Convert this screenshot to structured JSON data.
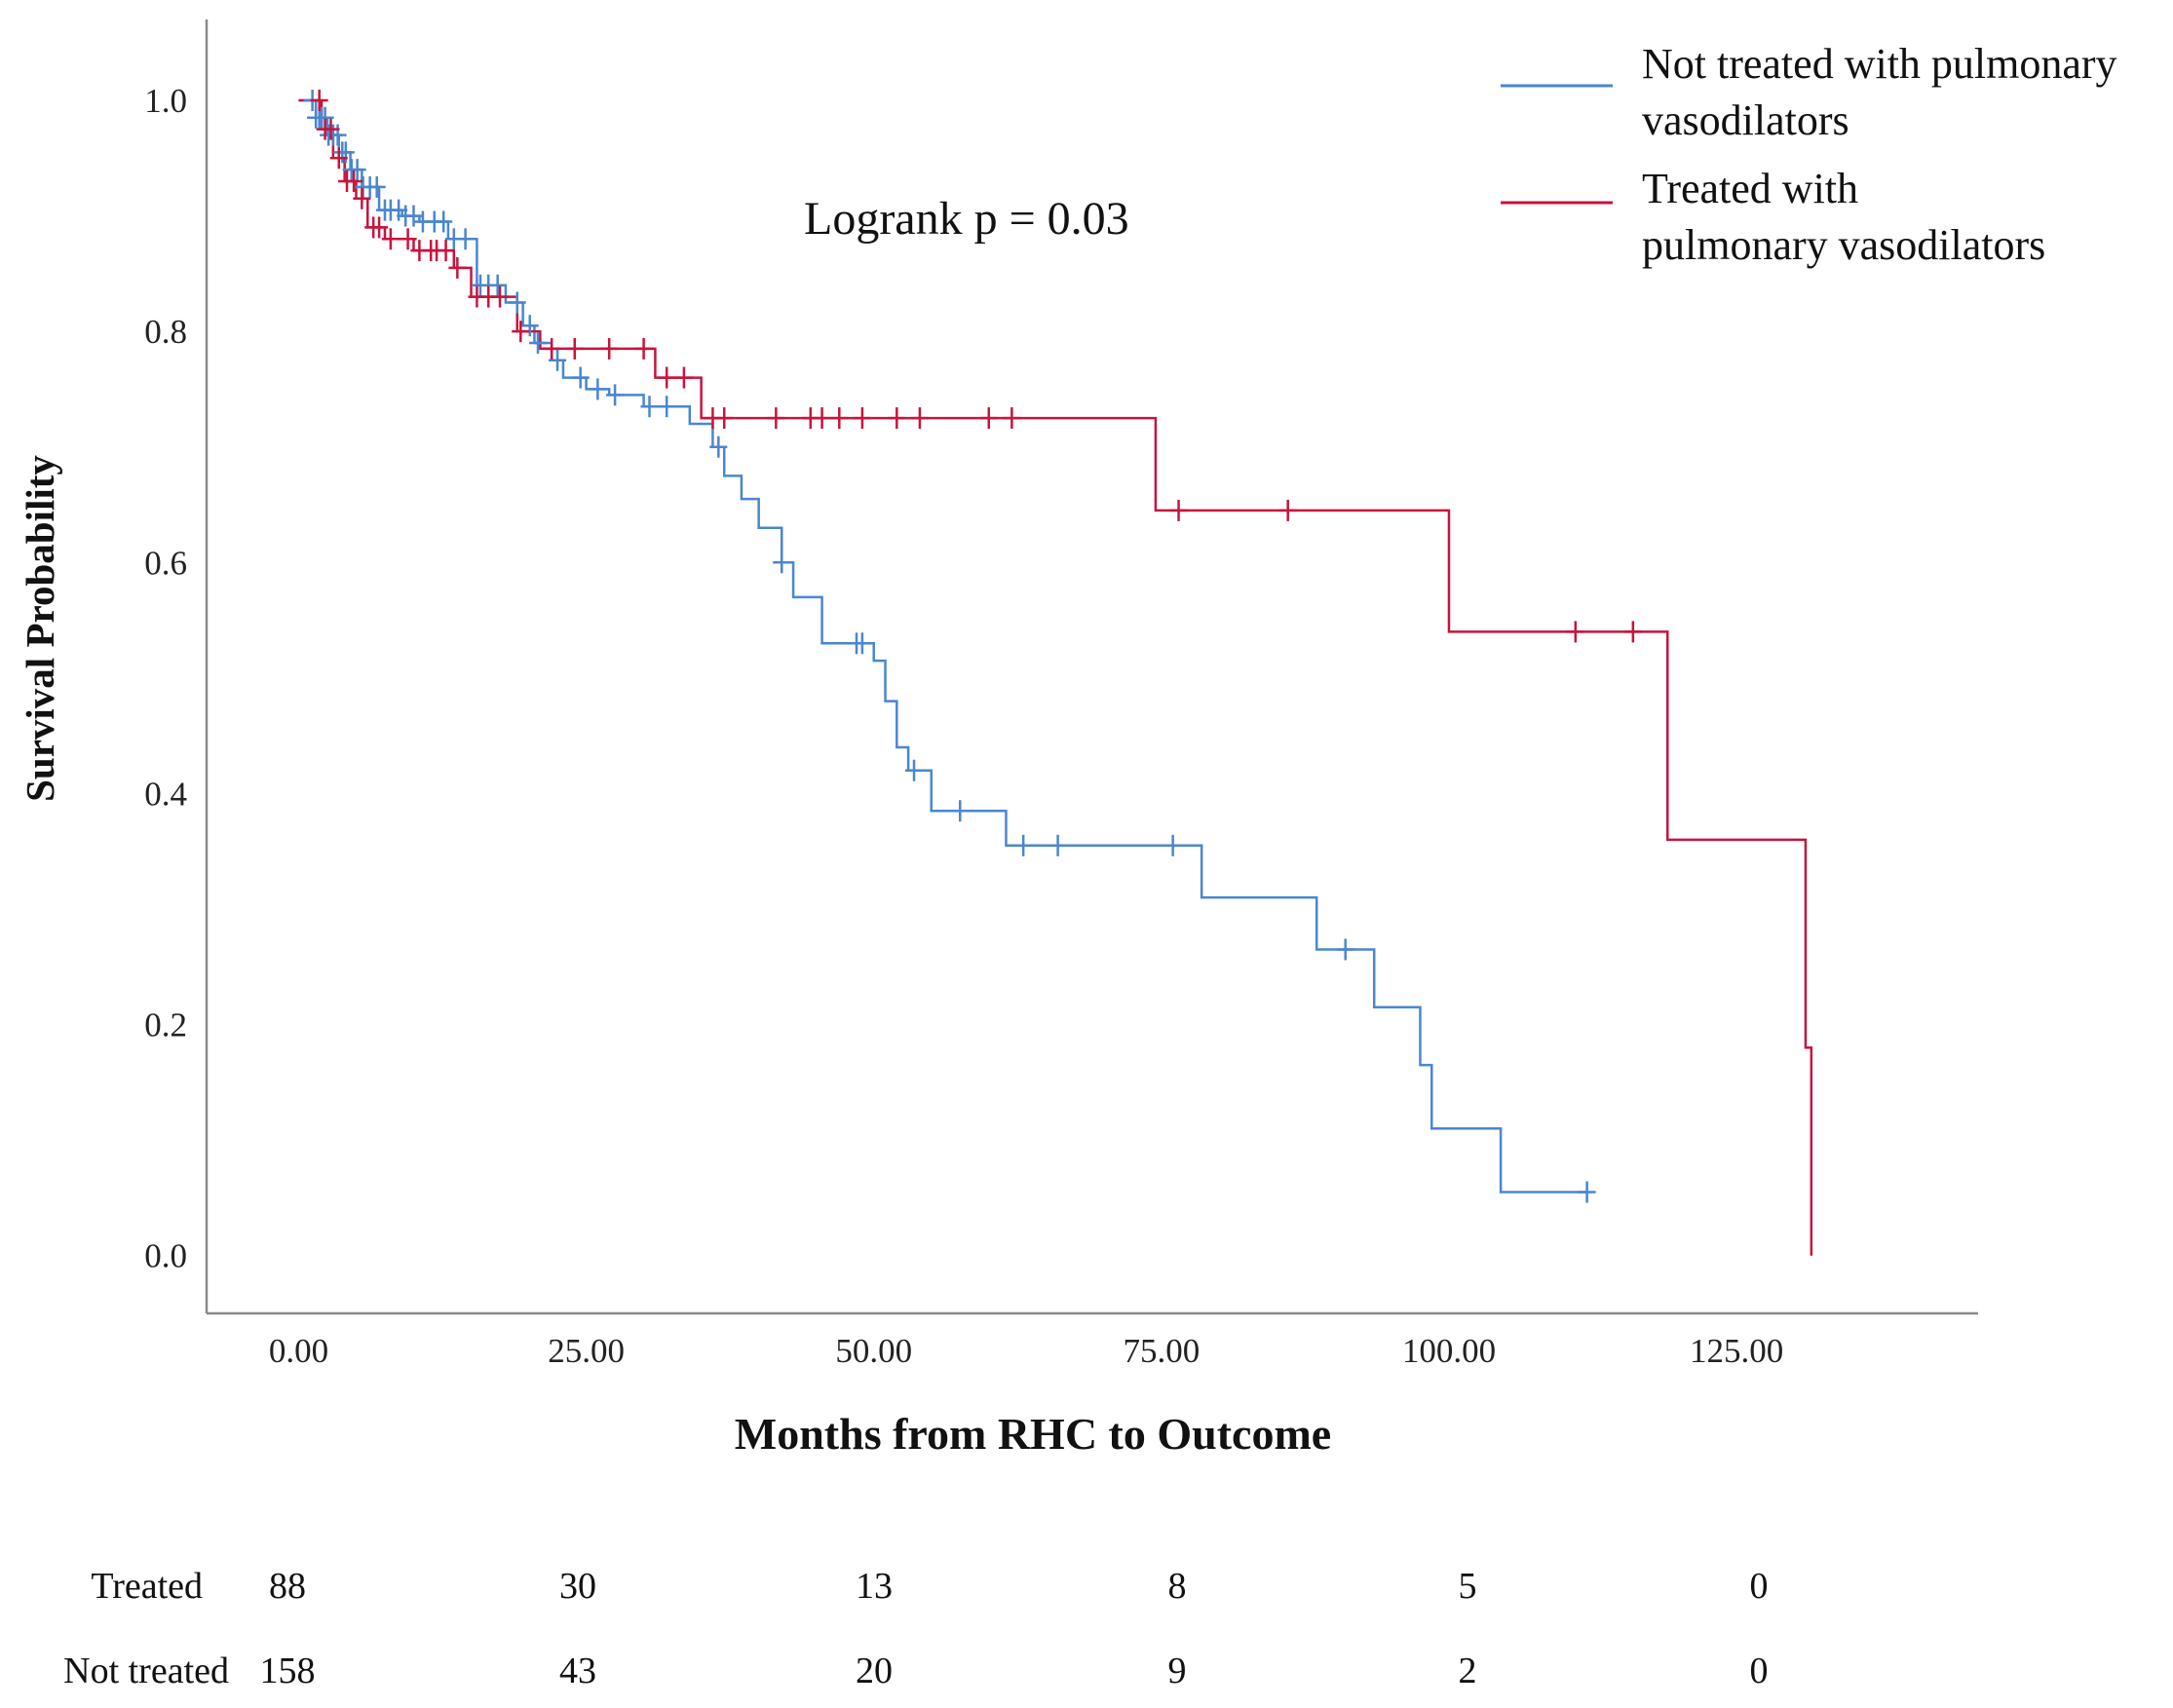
{
  "chart_data": {
    "type": "line",
    "subtype": "kaplan-meier",
    "title": "",
    "xlabel": "Months from RHC to Outcome",
    "ylabel": "Survival Probability",
    "xlim": [
      -8,
      146
    ],
    "ylim": [
      -0.05,
      1.07
    ],
    "x_ticks": [
      0,
      25,
      50,
      75,
      100,
      125
    ],
    "x_tick_labels": [
      "0.00",
      "25.00",
      "50.00",
      "75.00",
      "100.00",
      "125.00"
    ],
    "y_ticks": [
      0,
      0.2,
      0.4,
      0.6,
      0.8,
      1.0
    ],
    "y_tick_labels": [
      "0.0",
      "0.2",
      "0.4",
      "0.6",
      "0.8",
      "1.0"
    ],
    "annotation": "Logrank  p = 0.03",
    "legend": {
      "placement": "top-right",
      "entries": [
        {
          "lines": [
            "Not treated with pulmonary",
            "vasodilators"
          ],
          "color": "#4a86d0"
        },
        {
          "lines": [
            "Treated with",
            "pulmonary  vasodilators"
          ],
          "color": "#c8143c"
        }
      ]
    },
    "series": [
      {
        "name": "Not treated with pulmonary vasodilators",
        "color": "#4a86d0",
        "x": [
          0,
          1.5,
          2.5,
          3.5,
          4.5,
          5.5,
          7,
          9,
          10.5,
          13,
          15.5,
          18,
          19.5,
          20.5,
          22,
          23,
          25,
          27,
          30,
          34,
          36,
          37,
          38.5,
          40,
          42,
          43,
          45.5,
          50,
          51,
          52,
          53,
          55,
          61.5,
          75,
          78.5,
          88.5,
          93.5,
          97.5,
          98.5,
          104.5,
          112
        ],
        "y": [
          1.0,
          0.985,
          0.97,
          0.955,
          0.94,
          0.925,
          0.905,
          0.9,
          0.895,
          0.88,
          0.84,
          0.825,
          0.805,
          0.79,
          0.775,
          0.76,
          0.75,
          0.745,
          0.735,
          0.72,
          0.7,
          0.675,
          0.655,
          0.63,
          0.6,
          0.57,
          0.53,
          0.515,
          0.48,
          0.44,
          0.42,
          0.385,
          0.355,
          0.355,
          0.31,
          0.265,
          0.215,
          0.165,
          0.11,
          0.055,
          0.055
        ],
        "censored_x": [
          1.2,
          1.5,
          1.8,
          2.0,
          2.3,
          2.6,
          3.0,
          3.4,
          3.8,
          4.1,
          4.6,
          5.1,
          5.6,
          6.2,
          6.8,
          7.5,
          8.0,
          8.7,
          9.3,
          10.0,
          10.8,
          11.8,
          12.6,
          13.5,
          14.5,
          15.8,
          16.5,
          17.3,
          19.0,
          20.1,
          20.8,
          22.5,
          24.5,
          26.0,
          27.5,
          30.5,
          32.0,
          36.5,
          42.0,
          48.5,
          49.0,
          53.5,
          57.5,
          63.0,
          66.0,
          76.0,
          91.0,
          112.0
        ]
      },
      {
        "name": "Treated with pulmonary vasodilators",
        "color": "#c8143c",
        "x": [
          0,
          2.0,
          3.0,
          4.0,
          5.0,
          6.0,
          7.5,
          10.0,
          13.5,
          15.0,
          19.0,
          21.0,
          31.0,
          35.0,
          74.5,
          100.0,
          119.0,
          131.0,
          131.5
        ],
        "y": [
          1.0,
          0.975,
          0.95,
          0.93,
          0.915,
          0.89,
          0.88,
          0.87,
          0.855,
          0.83,
          0.8,
          0.785,
          0.76,
          0.725,
          0.645,
          0.54,
          0.36,
          0.18,
          0.0
        ],
        "censored_x": [
          1.8,
          2.3,
          2.8,
          3.5,
          4.2,
          4.8,
          5.5,
          6.5,
          7.0,
          8.0,
          9.5,
          10.5,
          11.5,
          12.0,
          12.8,
          13.8,
          15.5,
          16.5,
          17.5,
          19.3,
          22.0,
          24.0,
          27.0,
          30.0,
          32.0,
          33.5,
          36.0,
          37.0,
          41.5,
          44.5,
          45.5,
          47.0,
          49.0,
          52.0,
          54.0,
          60.0,
          62.0,
          76.5,
          86.0,
          111.0,
          116.0
        ]
      }
    ],
    "risk_table": {
      "rows": [
        {
          "label": "Treated",
          "values": [
            "88",
            "30",
            "13",
            "8",
            "5",
            "0"
          ]
        },
        {
          "label": "Not treated",
          "values": [
            "158",
            "43",
            "20",
            "9",
            "2",
            "0"
          ]
        }
      ]
    }
  }
}
